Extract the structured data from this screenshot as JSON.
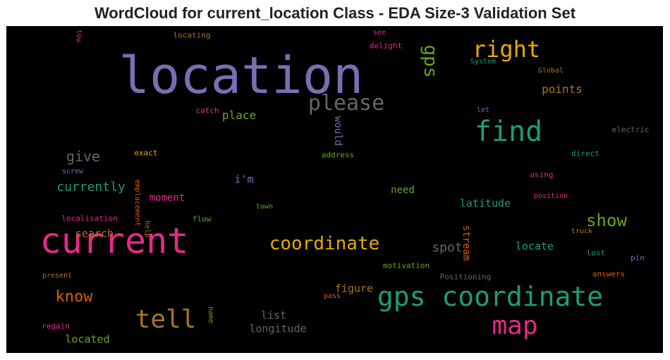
{
  "title": "WordCloud for current_location Class - EDA Size-3 Validation Set",
  "colors": {
    "background": "#000000",
    "purple": "#7570b3",
    "pink": "#e7298a",
    "green": "#1b9e77",
    "lime": "#66a61e",
    "gold": "#e6ab02",
    "brown": "#a6761d",
    "orange": "#d95f02",
    "grey": "#666666"
  },
  "words": [
    {
      "text": "location",
      "color": "#7570b3"
    },
    {
      "text": "current",
      "color": "#e7298a"
    },
    {
      "text": "gps coordinate",
      "color": "#1b9e77"
    },
    {
      "text": "find",
      "color": "#1b9e77"
    },
    {
      "text": "map",
      "color": "#e7298a"
    },
    {
      "text": "tell",
      "color": "#a6761d"
    },
    {
      "text": "please",
      "color": "#666666"
    },
    {
      "text": "right",
      "color": "#e6ab02"
    },
    {
      "text": "coordinate",
      "color": "#e6ab02"
    },
    {
      "text": "gps",
      "color": "#66a61e"
    },
    {
      "text": "show",
      "color": "#66a61e"
    },
    {
      "text": "know",
      "color": "#d95f02"
    },
    {
      "text": "currently",
      "color": "#1b9e77"
    },
    {
      "text": "give",
      "color": "#666666"
    },
    {
      "text": "spot",
      "color": "#666666"
    },
    {
      "text": "place",
      "color": "#66a61e"
    },
    {
      "text": "points",
      "color": "#a6761d"
    },
    {
      "text": "moment",
      "color": "#e7298a"
    },
    {
      "text": "latitude",
      "color": "#1b9e77"
    },
    {
      "text": "located",
      "color": "#66a61e"
    },
    {
      "text": "longitude",
      "color": "#666666"
    },
    {
      "text": "list",
      "color": "#666666"
    },
    {
      "text": "search",
      "color": "#a6761d"
    },
    {
      "text": "figure",
      "color": "#a6761d"
    },
    {
      "text": "need",
      "color": "#66a61e"
    },
    {
      "text": "locate",
      "color": "#1b9e77"
    },
    {
      "text": "i'm",
      "color": "#7570b3"
    },
    {
      "text": "stream",
      "color": "#d95f02"
    },
    {
      "text": "would",
      "color": "#7570b3"
    },
    {
      "text": "locating",
      "color": "#a6761d"
    },
    {
      "text": "see",
      "color": "#e7298a"
    },
    {
      "text": "delight",
      "color": "#e7298a"
    },
    {
      "text": "System",
      "color": "#1b9e77"
    },
    {
      "text": "Global",
      "color": "#a6761d"
    },
    {
      "text": "tow",
      "color": "#e7298a"
    },
    {
      "text": "catch",
      "color": "#e7298a"
    },
    {
      "text": "let",
      "color": "#7570b3"
    },
    {
      "text": "electric",
      "color": "#666666"
    },
    {
      "text": "exact",
      "color": "#e6ab02"
    },
    {
      "text": "address",
      "color": "#66a61e"
    },
    {
      "text": "direct",
      "color": "#1b9e77"
    },
    {
      "text": "screw",
      "color": "#7570b3"
    },
    {
      "text": "using",
      "color": "#e7298a"
    },
    {
      "text": "position",
      "color": "#e7298a"
    },
    {
      "text": "emplacement",
      "color": "#d95f02"
    },
    {
      "text": "town",
      "color": "#66a61e"
    },
    {
      "text": "localisation",
      "color": "#e7298a"
    },
    {
      "text": "help",
      "color": "#a6761d"
    },
    {
      "text": "flow",
      "color": "#66a61e"
    },
    {
      "text": "truck",
      "color": "#a6761d"
    },
    {
      "text": "lost",
      "color": "#1b9e77"
    },
    {
      "text": "pin",
      "color": "#7570b3"
    },
    {
      "text": "motivation",
      "color": "#66a61e"
    },
    {
      "text": "Positioning",
      "color": "#666666"
    },
    {
      "text": "present",
      "color": "#a6761d"
    },
    {
      "text": "answers",
      "color": "#d95f02"
    },
    {
      "text": "pass",
      "color": "#d95f02"
    },
    {
      "text": "name",
      "color": "#66a61e"
    },
    {
      "text": "regain",
      "color": "#e7298a"
    }
  ]
}
